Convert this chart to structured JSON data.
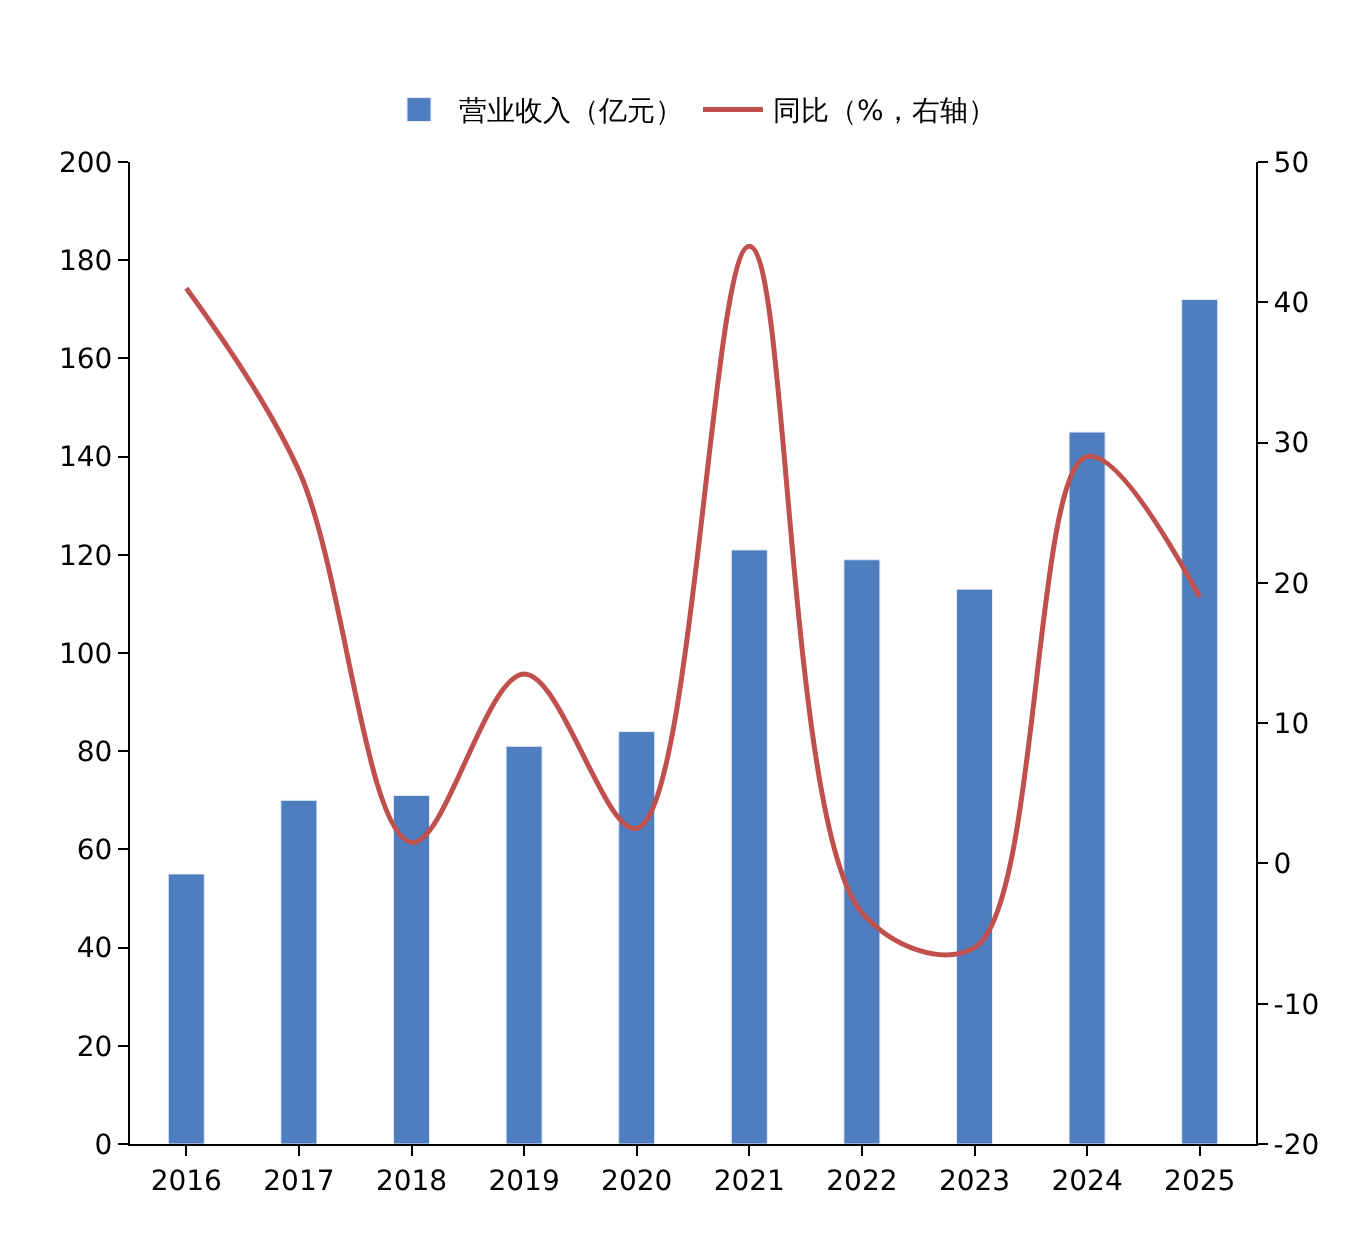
{
  "chart_data": {
    "type": "bar",
    "categories": [
      "2016",
      "2017",
      "2018",
      "2019",
      "2020",
      "2021",
      "2022",
      "2023",
      "2024",
      "2025"
    ],
    "series": [
      {
        "name": "营业收入（亿元）",
        "color": "#4f7ec0",
        "values": [
          55,
          70,
          71,
          81,
          84,
          121,
          119,
          113,
          145,
          172
        ]
      },
      {
        "name": "同比（%，右轴）",
        "type": "line",
        "axis": "y2",
        "color": "#c0504d",
        "values": [
          41,
          28,
          1.5,
          13.5,
          2.5,
          44,
          -3.5,
          -6,
          29,
          19
        ]
      }
    ],
    "ylim": [
      0,
      200
    ],
    "yticks": [
      0,
      20,
      40,
      60,
      80,
      100,
      120,
      140,
      160,
      180,
      200
    ],
    "y2lim": [
      -20,
      50
    ],
    "y2ticks": [
      -20,
      -10,
      0,
      10,
      20,
      30,
      40,
      50
    ],
    "legend": "top",
    "marker": "none",
    "line_style": "solid"
  }
}
